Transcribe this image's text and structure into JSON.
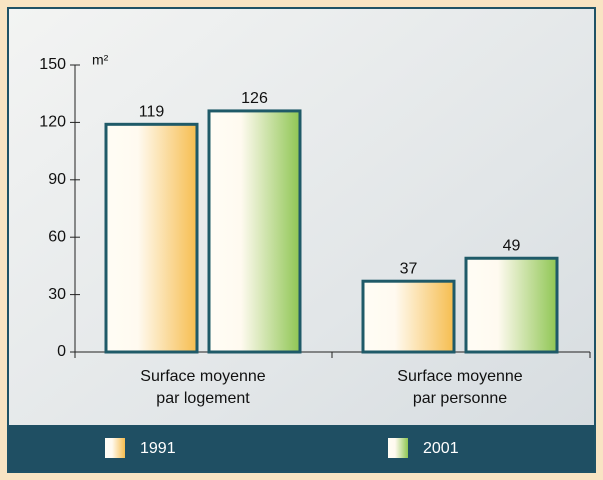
{
  "chart_data": {
    "type": "bar",
    "unit_label": "m²",
    "categories": [
      "Surface moyenne\npar logement",
      "Surface moyenne\npar personne"
    ],
    "series": [
      {
        "name": "1991",
        "color": "#f6bd4f",
        "values": [
          119,
          37
        ]
      },
      {
        "name": "2001",
        "color": "#8fc653",
        "values": [
          126,
          49
        ]
      }
    ],
    "ylim": [
      0,
      150
    ],
    "yticks": [
      0,
      30,
      60,
      90,
      120,
      150
    ],
    "grid": false,
    "legend": "bottom"
  }
}
